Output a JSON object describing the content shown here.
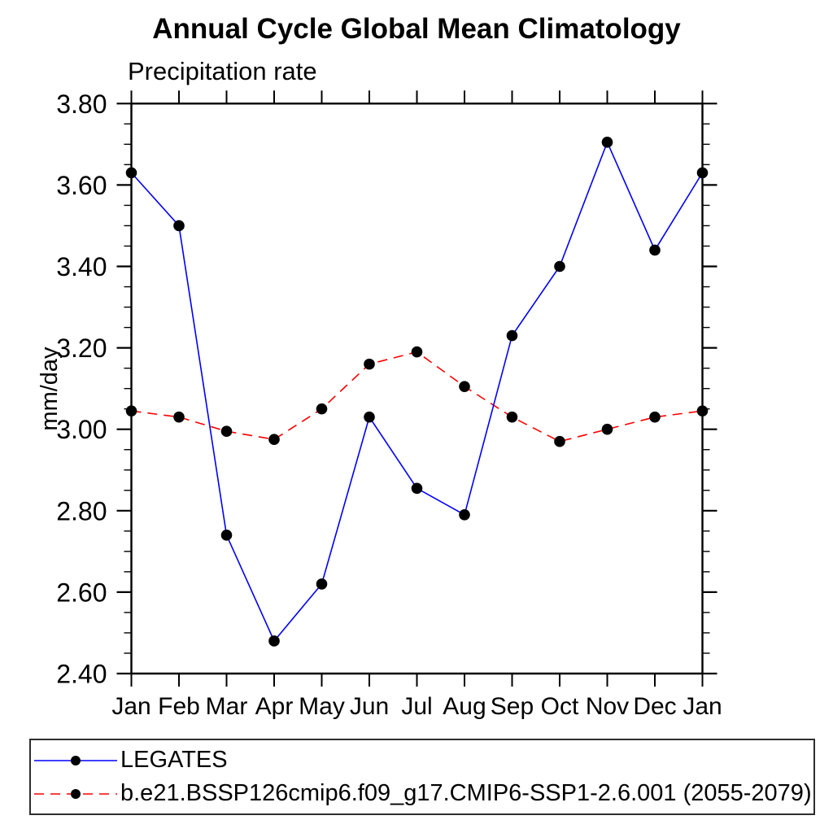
{
  "chart_data": {
    "type": "line",
    "title": "Annual Cycle Global Mean Climatology",
    "subtitle": "Precipitation rate",
    "ylabel": "mm/day",
    "xlabel": "",
    "categories": [
      "Jan",
      "Feb",
      "Mar",
      "Apr",
      "May",
      "Jun",
      "Jul",
      "Aug",
      "Sep",
      "Oct",
      "Nov",
      "Dec",
      "Jan"
    ],
    "ylim": [
      2.4,
      3.8
    ],
    "ytick_step": 0.2,
    "yminor_step": 0.05,
    "yticks": [
      {
        "value": 3.8,
        "label": "3.80"
      },
      {
        "value": 3.6,
        "label": "3.60"
      },
      {
        "value": 3.4,
        "label": "3.40"
      },
      {
        "value": 3.2,
        "label": "3.20"
      },
      {
        "value": 3.0,
        "label": "3.00"
      },
      {
        "value": 2.8,
        "label": "2.80"
      },
      {
        "value": 2.6,
        "label": "2.60"
      },
      {
        "value": 2.4,
        "label": "2.40"
      }
    ],
    "grid": false,
    "legend_position": "bottom-left-box",
    "series": [
      {
        "name": "LEGATES",
        "color": "#0000ff",
        "line_style": "solid",
        "marker": "filled-circle",
        "marker_color": "#000000",
        "values": [
          3.63,
          3.5,
          2.74,
          2.48,
          2.62,
          3.03,
          2.855,
          2.79,
          3.23,
          3.4,
          3.705,
          3.44,
          3.63
        ]
      },
      {
        "name": "b.e21.BSSP126cmip6.f09_g17.CMIP6-SSP1-2.6.001 (2055-2079)",
        "color": "#ff0000",
        "line_style": "dashed",
        "marker": "filled-circle",
        "marker_color": "#000000",
        "values": [
          3.045,
          3.03,
          2.995,
          2.975,
          3.05,
          3.16,
          3.19,
          3.105,
          3.03,
          2.97,
          3.0,
          3.03,
          3.045
        ]
      }
    ],
    "axis_color": "#000000",
    "background_color": "#ffffff"
  }
}
